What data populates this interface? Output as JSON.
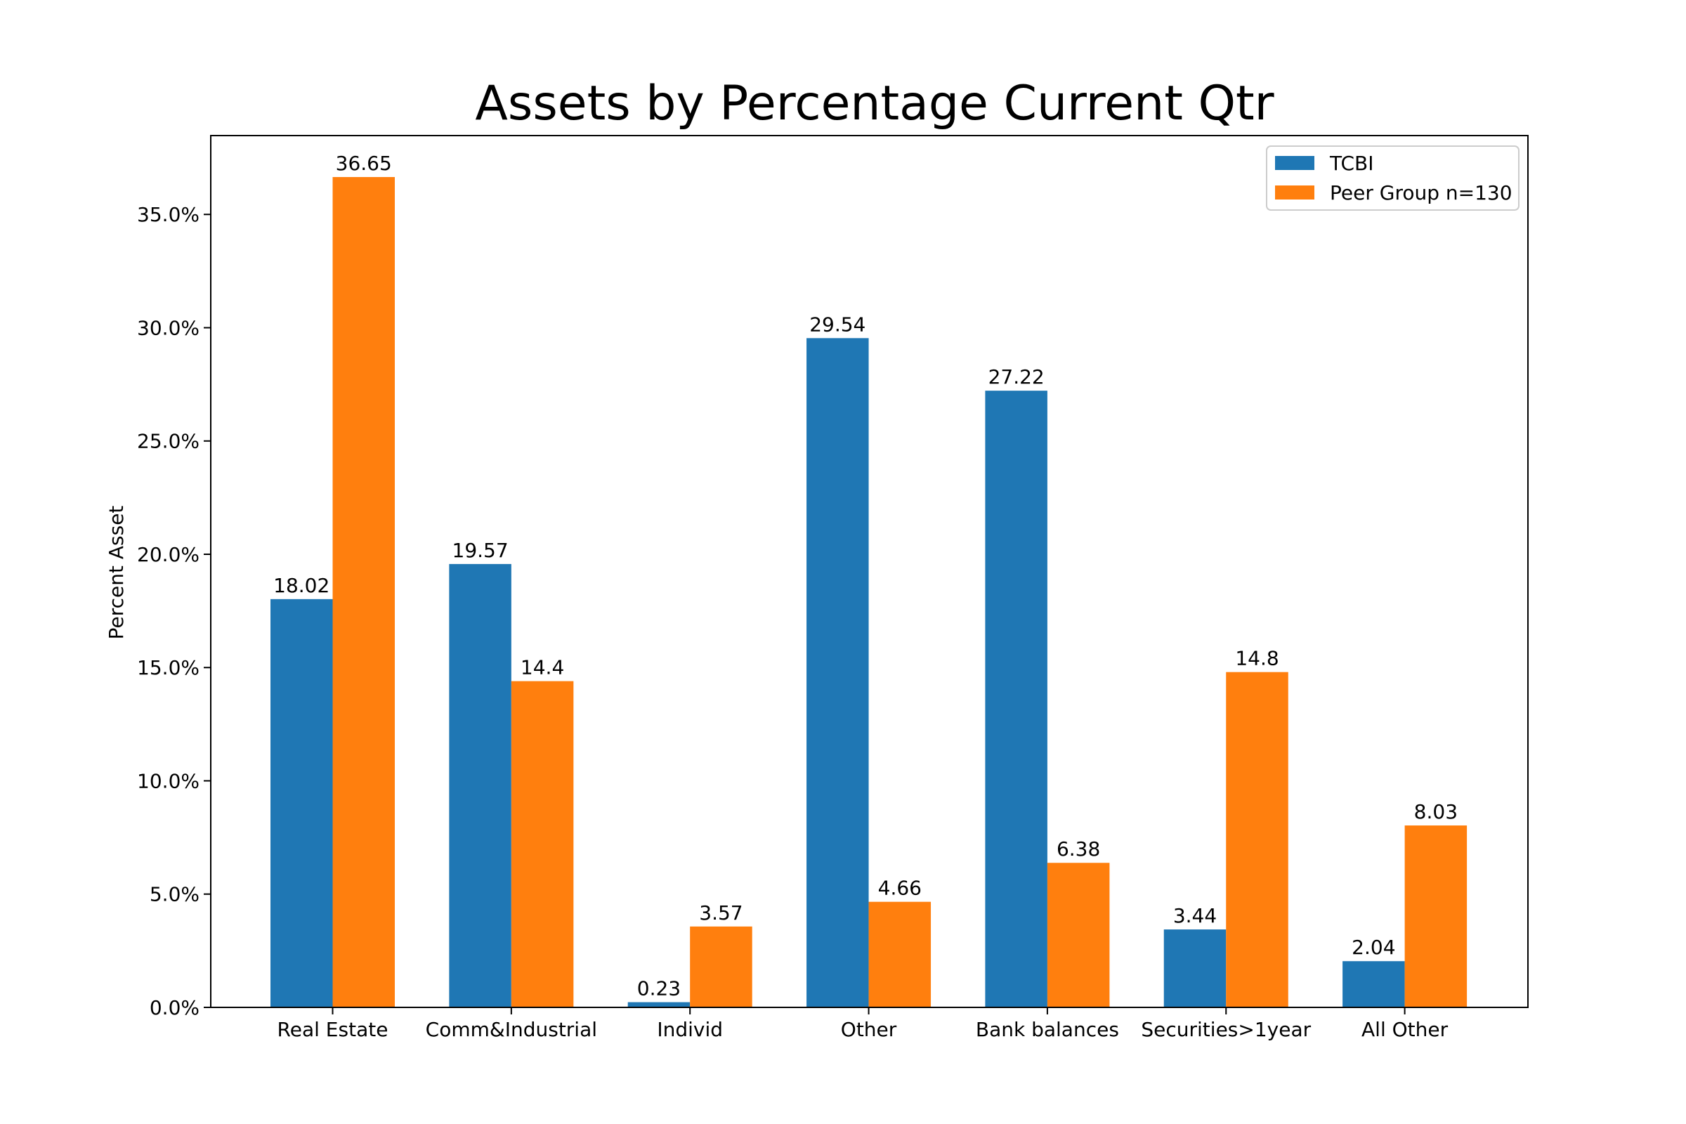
{
  "chart_data": {
    "type": "bar",
    "title": "Assets by Percentage Current Qtr",
    "xlabel": "",
    "ylabel": "Percent Asset",
    "categories": [
      "Real Estate",
      "Comm&Industrial",
      "Individ",
      "Other",
      "Bank balances",
      "Securities>1year",
      "All Other"
    ],
    "series": [
      {
        "name": "TCBI",
        "color": "#1f77b4",
        "values": [
          18.02,
          19.57,
          0.23,
          29.54,
          27.22,
          3.44,
          2.04
        ],
        "labels": [
          "18.02",
          "19.57",
          "0.23",
          "29.54",
          "27.22",
          "3.44",
          "2.04"
        ]
      },
      {
        "name": "Peer Group n=130",
        "color": "#ff7f0e",
        "values": [
          36.65,
          14.4,
          3.57,
          4.66,
          6.38,
          14.8,
          8.03
        ],
        "labels": [
          "36.65",
          "14.4",
          "3.57",
          "4.66",
          "6.38",
          "14.8",
          "8.03"
        ]
      }
    ],
    "ylim": [
      0,
      38.48
    ],
    "yticks": [
      0,
      5,
      10,
      15,
      20,
      25,
      30,
      35
    ],
    "ytick_labels": [
      "0.0%",
      "5.0%",
      "10.0%",
      "15.0%",
      "20.0%",
      "25.0%",
      "30.0%",
      "35.0%"
    ],
    "legend_position": "top-right",
    "grid": false
  }
}
